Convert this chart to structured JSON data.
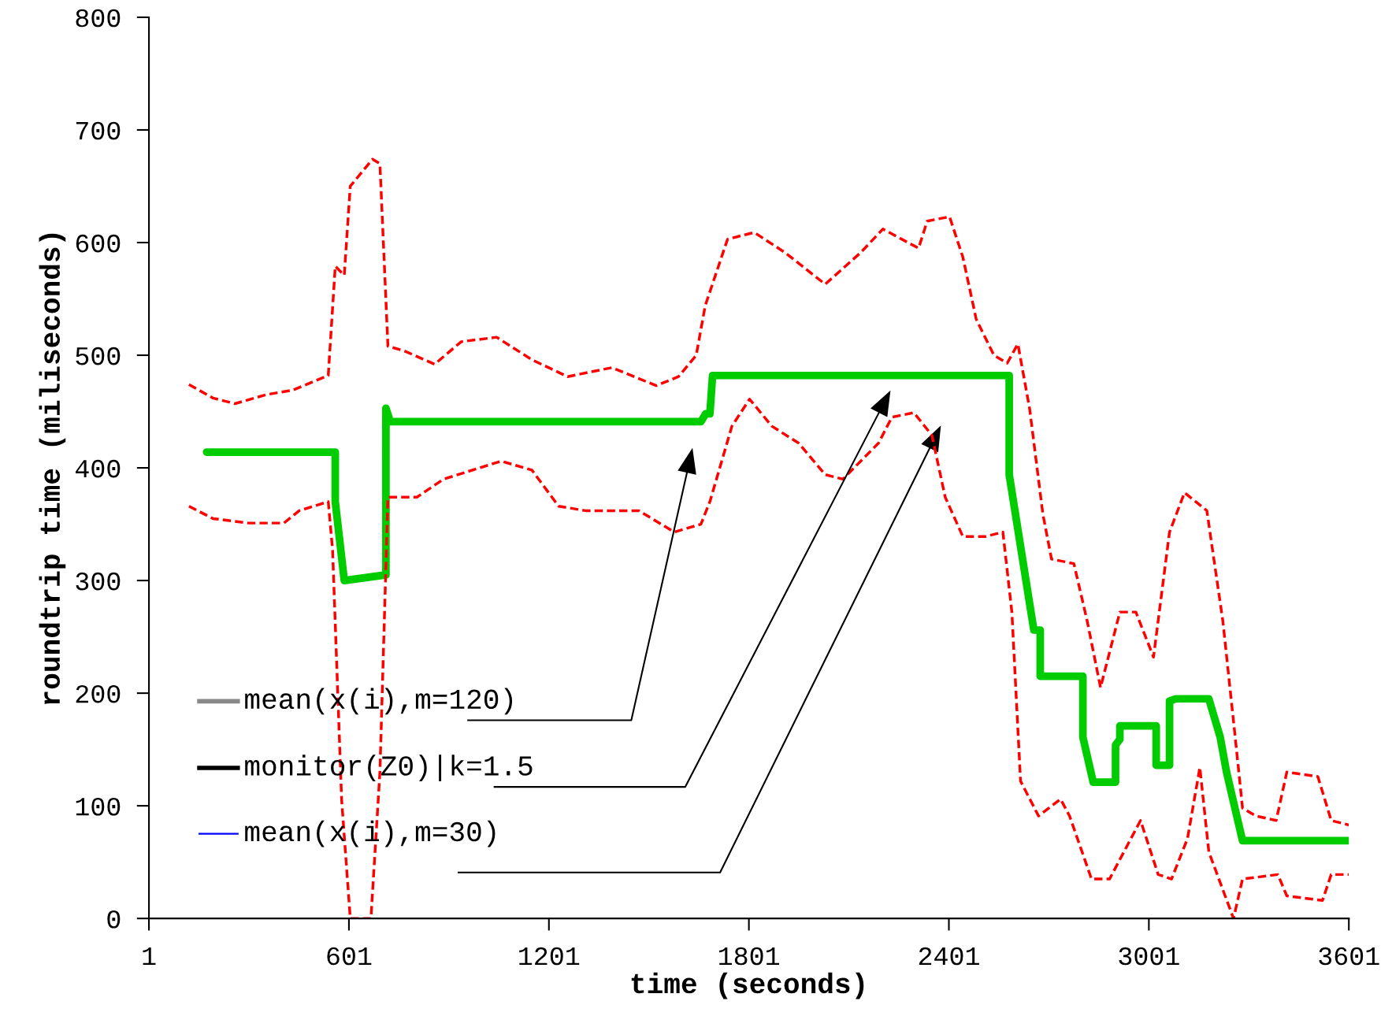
{
  "chart_data": {
    "type": "line",
    "xlabel": "time (seconds)",
    "ylabel": "roundtrip time (miliseconds)",
    "xlim": [
      1,
      3601
    ],
    "xticks": [
      1,
      601,
      1201,
      1801,
      2401,
      3001,
      3601
    ],
    "ylim": [
      0,
      800
    ],
    "yticks": [
      0,
      100,
      200,
      300,
      400,
      500,
      600,
      700,
      800
    ],
    "grid": false,
    "legend": false,
    "series": [
      {
        "color": "#00cc00",
        "line_style": "solid",
        "x": [
          174,
          560,
          560,
          587,
          712,
          712,
          725,
          1657,
          1671,
          1684,
          1692,
          2582,
          2582,
          2643,
          2656,
          2675,
          2675,
          2803,
          2803,
          2834,
          2901,
          2901,
          2914,
          2914,
          3023,
          3023,
          3063,
          3063,
          3082,
          3181,
          3215,
          3234,
          3282,
          3303,
          3601
        ],
        "values": [
          414,
          414,
          370,
          300,
          305,
          453,
          441,
          441,
          448,
          448,
          482,
          482,
          394,
          280,
          256,
          256,
          215,
          215,
          161,
          121,
          121,
          154,
          159,
          171,
          171,
          136,
          136,
          193,
          195,
          195,
          161,
          130,
          69,
          69,
          69
        ]
      },
      {
        "color": "#ff0000",
        "line_style": "dashed",
        "x": [
          121,
          193,
          259,
          353,
          432,
          539,
          560,
          587,
          605,
          672,
          694,
          718,
          766,
          858,
          938,
          1044,
          1150,
          1257,
          1390,
          1523,
          1590,
          1643,
          1670,
          1737,
          1817,
          1910,
          2030,
          2136,
          2203,
          2310,
          2336,
          2403,
          2443,
          2483,
          2536,
          2576,
          2608,
          2643,
          2683,
          2709,
          2776,
          2816,
          2856,
          2914,
          2962,
          3015,
          3063,
          3108,
          3175,
          3223,
          3260,
          3282,
          3322,
          3383,
          3415,
          3508,
          3548,
          3601
        ],
        "values": [
          474,
          462,
          457,
          465,
          469,
          482,
          579,
          571,
          650,
          674,
          670,
          508,
          504,
          492,
          512,
          516,
          496,
          481,
          489,
          473,
          481,
          500,
          544,
          603,
          609,
          591,
          563,
          591,
          612,
          595,
          619,
          623,
          587,
          532,
          500,
          493,
          510,
          453,
          359,
          319,
          315,
          264,
          205,
          272,
          272,
          232,
          343,
          378,
          362,
          264,
          161,
          98,
          91,
          87,
          130,
          126,
          87,
          83
        ]
      },
      {
        "color": "#ff0000",
        "line_style": "dashed",
        "x": [
          121,
          193,
          299,
          406,
          452,
          539,
          552,
          579,
          605,
          667,
          694,
          718,
          805,
          885,
          1058,
          1150,
          1230,
          1311,
          1471,
          1577,
          1657,
          1684,
          1750,
          1803,
          1870,
          1950,
          2030,
          2083,
          2190,
          2230,
          2296,
          2350,
          2390,
          2443,
          2510,
          2563,
          2590,
          2616,
          2670,
          2736,
          2763,
          2829,
          2883,
          2976,
          3029,
          3069,
          3117,
          3154,
          3181,
          3255,
          3282,
          3388,
          3415,
          3522,
          3548,
          3601
        ],
        "values": [
          366,
          355,
          351,
          351,
          362,
          370,
          327,
          106,
          0,
          0,
          130,
          374,
          374,
          390,
          406,
          398,
          366,
          362,
          362,
          343,
          350,
          370,
          437,
          461,
          437,
          422,
          394,
          390,
          422,
          445,
          449,
          429,
          374,
          339,
          339,
          343,
          272,
          122,
          91,
          106,
          91,
          35,
          35,
          87,
          39,
          35,
          71,
          134,
          59,
          0,
          35,
          39,
          20,
          16,
          39,
          39
        ]
      }
    ],
    "annotations": [
      "mean(x(i),m=120)",
      "monitor(Z0)|k=1.5",
      "mean(x(i),m=30)"
    ]
  }
}
